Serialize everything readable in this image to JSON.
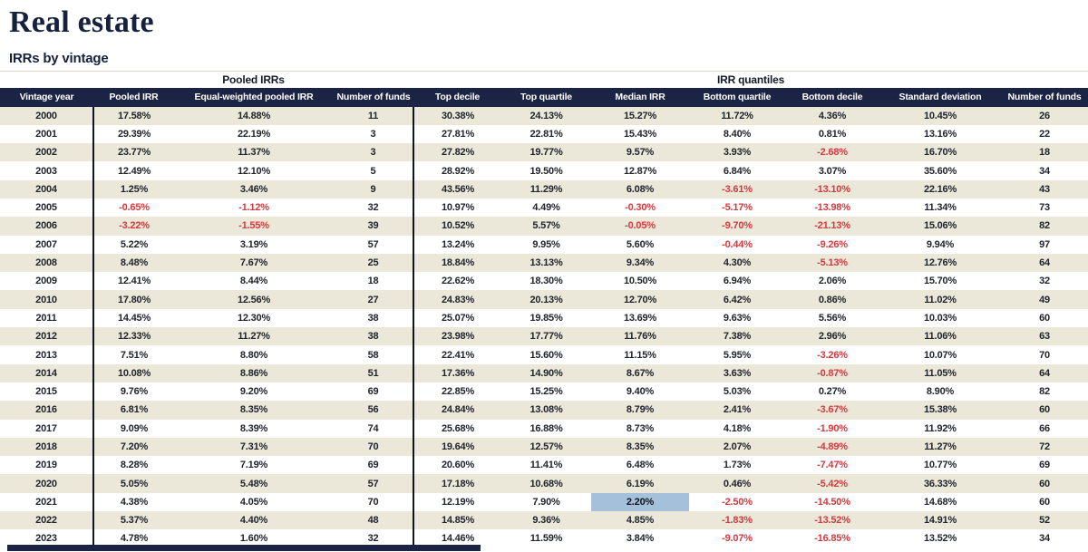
{
  "page": {
    "title": "Real estate",
    "subtitle": "IRRs by vintage"
  },
  "table": {
    "group_headers": [
      {
        "label": "Pooled IRRs"
      },
      {
        "label": "IRR quantiles"
      }
    ],
    "columns": [
      "Vintage year",
      "Pooled IRR",
      "Equal-weighted pooled IRR",
      "Number of funds",
      "Top decile",
      "Top quartile",
      "Median IRR",
      "Bottom quartile",
      "Bottom decile",
      "Standard deviation",
      "Number of funds"
    ],
    "rows": [
      [
        "2000",
        "17.58%",
        "14.88%",
        "11",
        "30.38%",
        "24.13%",
        "15.27%",
        "11.72%",
        "4.36%",
        "10.45%",
        "26"
      ],
      [
        "2001",
        "29.39%",
        "22.19%",
        "3",
        "27.81%",
        "22.81%",
        "15.43%",
        "8.40%",
        "0.81%",
        "13.16%",
        "22"
      ],
      [
        "2002",
        "23.77%",
        "11.37%",
        "3",
        "27.82%",
        "19.77%",
        "9.57%",
        "3.93%",
        "-2.68%",
        "16.70%",
        "18"
      ],
      [
        "2003",
        "12.49%",
        "12.10%",
        "5",
        "28.92%",
        "19.50%",
        "12.87%",
        "6.84%",
        "3.07%",
        "35.60%",
        "34"
      ],
      [
        "2004",
        "1.25%",
        "3.46%",
        "9",
        "43.56%",
        "11.29%",
        "6.08%",
        "-3.61%",
        "-13.10%",
        "22.16%",
        "43"
      ],
      [
        "2005",
        "-0.65%",
        "-1.12%",
        "32",
        "10.97%",
        "4.49%",
        "-0.30%",
        "-5.17%",
        "-13.98%",
        "11.34%",
        "73"
      ],
      [
        "2006",
        "-3.22%",
        "-1.55%",
        "39",
        "10.52%",
        "5.57%",
        "-0.05%",
        "-9.70%",
        "-21.13%",
        "15.06%",
        "82"
      ],
      [
        "2007",
        "5.22%",
        "3.19%",
        "57",
        "13.24%",
        "9.95%",
        "5.60%",
        "-0.44%",
        "-9.26%",
        "9.94%",
        "97"
      ],
      [
        "2008",
        "8.48%",
        "7.67%",
        "25",
        "18.84%",
        "13.13%",
        "9.34%",
        "4.30%",
        "-5.13%",
        "12.76%",
        "64"
      ],
      [
        "2009",
        "12.41%",
        "8.44%",
        "18",
        "22.62%",
        "18.30%",
        "10.50%",
        "6.94%",
        "2.06%",
        "15.70%",
        "32"
      ],
      [
        "2010",
        "17.80%",
        "12.56%",
        "27",
        "24.83%",
        "20.13%",
        "12.70%",
        "6.42%",
        "0.86%",
        "11.02%",
        "49"
      ],
      [
        "2011",
        "14.45%",
        "12.30%",
        "38",
        "25.07%",
        "19.85%",
        "13.69%",
        "9.63%",
        "5.56%",
        "10.03%",
        "60"
      ],
      [
        "2012",
        "12.33%",
        "11.27%",
        "38",
        "23.98%",
        "17.77%",
        "11.76%",
        "7.38%",
        "2.96%",
        "11.06%",
        "63"
      ],
      [
        "2013",
        "7.51%",
        "8.80%",
        "58",
        "22.41%",
        "15.60%",
        "11.15%",
        "5.95%",
        "-3.26%",
        "10.07%",
        "70"
      ],
      [
        "2014",
        "10.08%",
        "8.86%",
        "51",
        "17.36%",
        "14.90%",
        "8.67%",
        "3.63%",
        "-0.87%",
        "11.05%",
        "64"
      ],
      [
        "2015",
        "9.76%",
        "9.20%",
        "69",
        "22.85%",
        "15.25%",
        "9.40%",
        "5.03%",
        "0.27%",
        "8.90%",
        "82"
      ],
      [
        "2016",
        "6.81%",
        "8.35%",
        "56",
        "24.84%",
        "13.08%",
        "8.79%",
        "2.41%",
        "-3.67%",
        "15.38%",
        "60"
      ],
      [
        "2017",
        "9.09%",
        "8.39%",
        "74",
        "25.68%",
        "16.88%",
        "8.73%",
        "4.18%",
        "-1.90%",
        "11.92%",
        "66"
      ],
      [
        "2018",
        "7.20%",
        "7.31%",
        "70",
        "19.64%",
        "12.57%",
        "8.35%",
        "2.07%",
        "-4.89%",
        "11.27%",
        "72"
      ],
      [
        "2019",
        "8.28%",
        "7.19%",
        "69",
        "20.60%",
        "11.41%",
        "6.48%",
        "1.73%",
        "-7.47%",
        "10.77%",
        "69"
      ],
      [
        "2020",
        "5.05%",
        "5.48%",
        "57",
        "17.18%",
        "10.68%",
        "6.19%",
        "0.46%",
        "-5.42%",
        "36.33%",
        "60"
      ],
      [
        "2021",
        "4.38%",
        "4.05%",
        "70",
        "12.19%",
        "7.90%",
        "2.20%",
        "-2.50%",
        "-14.50%",
        "14.68%",
        "60"
      ],
      [
        "2022",
        "5.37%",
        "4.40%",
        "48",
        "14.85%",
        "9.36%",
        "4.85%",
        "-1.83%",
        "-13.52%",
        "14.91%",
        "52"
      ],
      [
        "2023",
        "4.78%",
        "1.60%",
        "32",
        "14.46%",
        "11.59%",
        "3.84%",
        "-9.07%",
        "-16.85%",
        "13.52%",
        "34"
      ]
    ],
    "highlight_cell": {
      "row_index": 21,
      "col_index": 6
    }
  },
  "colors": {
    "header_bg": "#1b2444",
    "row_alt": "#ebe8d9",
    "negative": "#d23a3e",
    "highlight": "#a5c0da",
    "accent_navy": "#16213f"
  }
}
